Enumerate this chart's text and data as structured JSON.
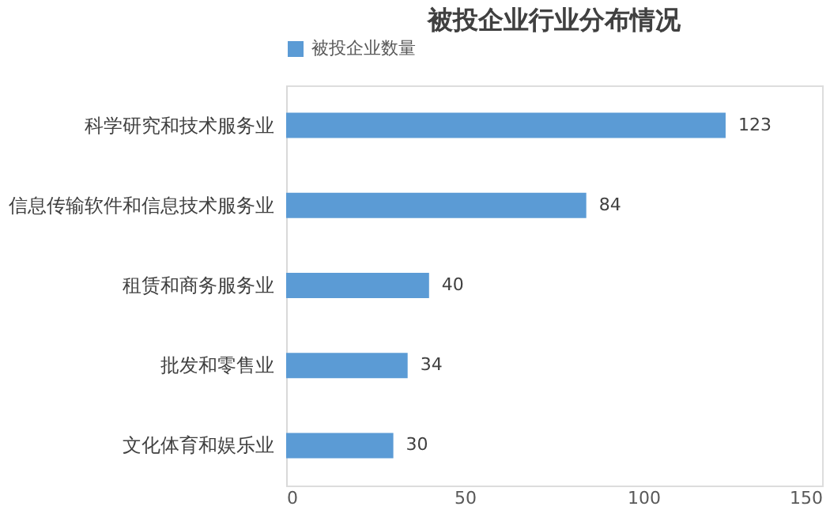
{
  "chart_data": {
    "type": "bar",
    "orientation": "horizontal",
    "title": "被投企业行业分布情况",
    "categories": [
      "科学研究和技术服务业",
      "信息传输软件和信息技术服务业",
      "租赁和商务服务业",
      "批发和零售业",
      "文化体育和娱乐业"
    ],
    "series": [
      {
        "name": "被投企业数量",
        "color": "#5b9bd5",
        "values": [
          123,
          84,
          40,
          34,
          30
        ]
      }
    ],
    "xlim": [
      0,
      150
    ],
    "xticks": [
      0,
      50,
      100,
      150
    ],
    "data_labels": true,
    "legend": "top",
    "grid": false
  }
}
